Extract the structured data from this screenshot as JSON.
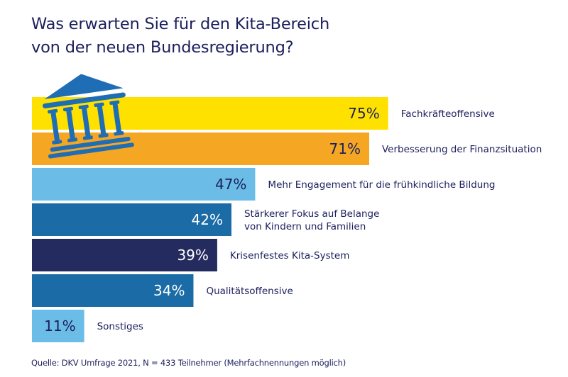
{
  "header": {
    "title_line1": "Was erwarten Sie für den Kita-Bereich",
    "title_line2": "von der neuen Bundesregierung?"
  },
  "icon": {
    "name": "government-building-icon",
    "color": "#1e6db5"
  },
  "footer": {
    "source": "Quelle:  DKV Umfrage 2021, N = 433 Teilnehmer (Mehrfachnennungen möglich)"
  },
  "chart_data": {
    "type": "bar",
    "orientation": "horizontal",
    "title": "Was erwarten Sie für den Kita-Bereich von der neuen Bundesregierung?",
    "xlabel": "",
    "ylabel": "",
    "unit": "%",
    "xlim": [
      0,
      100
    ],
    "grid": false,
    "legend": "none",
    "categories": [
      [
        "Fachkräfteoffensive"
      ],
      [
        "Verbesserung der Finanzsituation"
      ],
      [
        "Mehr Engagement für die frühkindliche Bildung"
      ],
      [
        "Stärkerer Fokus auf Belange",
        "von Kindern und Familien"
      ],
      [
        "Krisenfestes Kita-System"
      ],
      [
        "Qualitätsoffensive"
      ],
      [
        "Sonstiges"
      ]
    ],
    "values": [
      75,
      71,
      47,
      42,
      39,
      34,
      11
    ],
    "value_labels": [
      "75%",
      "71%",
      "47%",
      "42%",
      "39%",
      "34%",
      "11%"
    ],
    "colors": [
      "#ffe100",
      "#f5a623",
      "#6bbde8",
      "#1a6ba6",
      "#242b5e",
      "#1a6ba6",
      "#6bbde8"
    ],
    "value_text_colors": [
      "#1b1f5c",
      "#1b1f5c",
      "#1b1f5c",
      "#ffffff",
      "#ffffff",
      "#ffffff",
      "#1b1f5c"
    ],
    "source": "Quelle:  DKV Umfrage 2021, N = 433 Teilnehmer (Mehrfachnennungen möglich)"
  }
}
